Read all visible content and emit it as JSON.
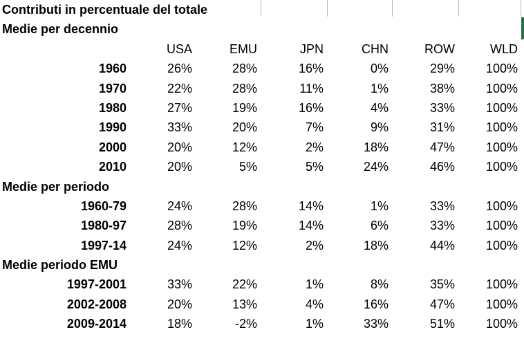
{
  "app": {
    "background_color": "#ffffff",
    "text_color": "#000000",
    "gridline_color": "#b7b7b7",
    "selection_border_color": "#217346"
  },
  "title": "Contributi in percentuale del totale",
  "table": {
    "columns": [
      "USA",
      "EMU",
      "JPN",
      "CHN",
      "ROW",
      "WLD"
    ],
    "sections": [
      {
        "label": "Medie per decennio",
        "rows": [
          {
            "label": "1960",
            "values": [
              "26%",
              "28%",
              "16%",
              "0%",
              "29%",
              "100%"
            ]
          },
          {
            "label": "1970",
            "values": [
              "22%",
              "28%",
              "11%",
              "1%",
              "38%",
              "100%"
            ]
          },
          {
            "label": "1980",
            "values": [
              "27%",
              "19%",
              "16%",
              "4%",
              "33%",
              "100%"
            ]
          },
          {
            "label": "1990",
            "values": [
              "33%",
              "20%",
              "7%",
              "9%",
              "31%",
              "100%"
            ]
          },
          {
            "label": "2000",
            "values": [
              "20%",
              "12%",
              "2%",
              "18%",
              "47%",
              "100%"
            ]
          },
          {
            "label": "2010",
            "values": [
              "20%",
              "5%",
              "5%",
              "24%",
              "46%",
              "100%"
            ]
          }
        ]
      },
      {
        "label": "Medie per periodo",
        "rows": [
          {
            "label": "1960-79",
            "values": [
              "24%",
              "28%",
              "14%",
              "1%",
              "33%",
              "100%"
            ]
          },
          {
            "label": "1980-97",
            "values": [
              "28%",
              "19%",
              "14%",
              "6%",
              "33%",
              "100%"
            ]
          },
          {
            "label": "1997-14",
            "values": [
              "24%",
              "12%",
              "2%",
              "18%",
              "44%",
              "100%"
            ]
          }
        ]
      },
      {
        "label": "Medie periodo EMU",
        "rows": [
          {
            "label": "1997-2001",
            "values": [
              "33%",
              "22%",
              "1%",
              "8%",
              "35%",
              "100%"
            ]
          },
          {
            "label": "2002-2008",
            "values": [
              "20%",
              "13%",
              "4%",
              "16%",
              "47%",
              "100%"
            ]
          },
          {
            "label": "2009-2014",
            "values": [
              "18%",
              "-2%",
              "1%",
              "33%",
              "51%",
              "100%"
            ]
          }
        ]
      }
    ]
  }
}
